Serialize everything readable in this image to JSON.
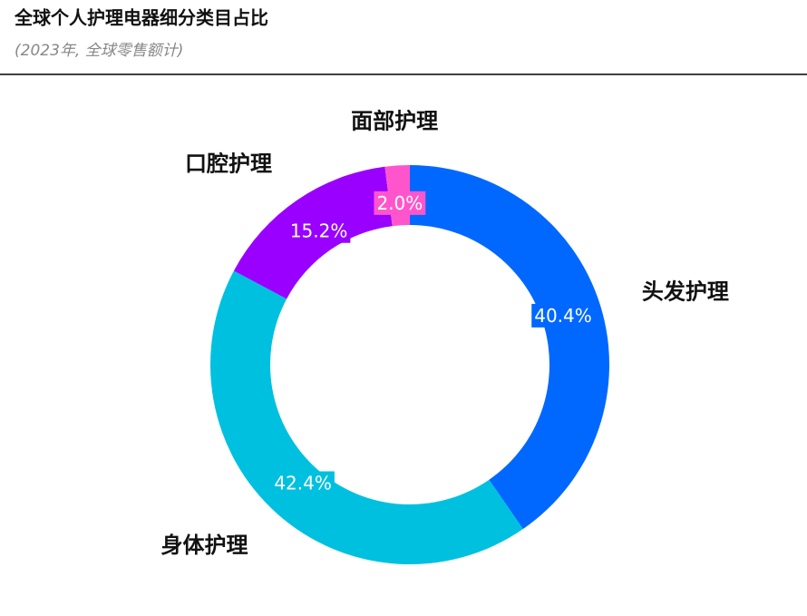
{
  "chart_data": {
    "type": "pie",
    "title": "全球个人护理电器细分类目占比",
    "subtitle": "(2023年, 全球零售额计)",
    "categories": [
      "头发护理",
      "身体护理",
      "口腔护理",
      "面部护理"
    ],
    "values": [
      40.4,
      42.4,
      15.2,
      2.0
    ],
    "value_labels": [
      "40.4%",
      "42.4%",
      "15.2%",
      "2.0%"
    ],
    "colors": [
      "#0068ff",
      "#00c0e0",
      "#9900ff",
      "#ff55cc"
    ]
  }
}
